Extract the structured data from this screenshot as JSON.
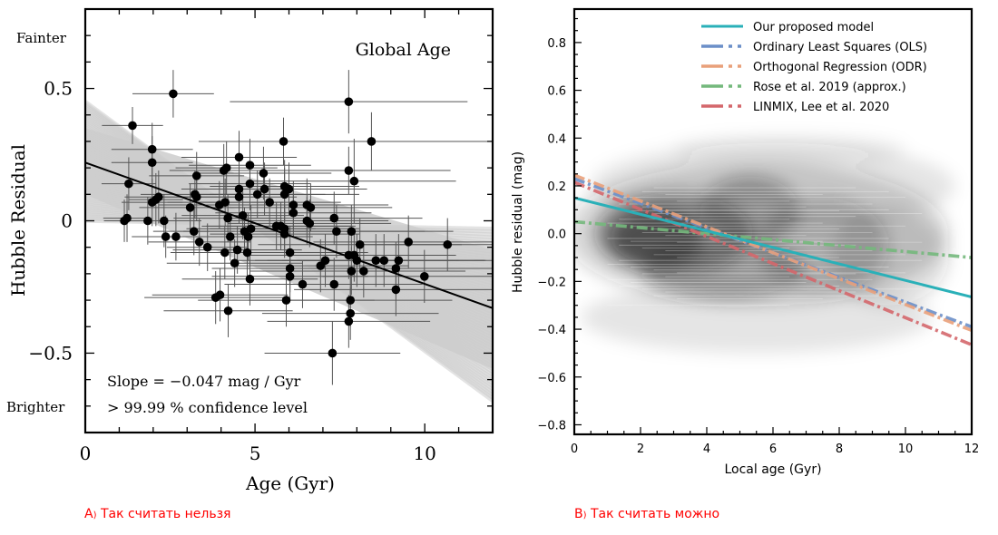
{
  "captions": {
    "a_letter": "A",
    "a_paren": ")",
    "a_text": "Так считать нельзя",
    "b_letter": "B",
    "b_paren": ")",
    "b_text": "Так считать можно"
  },
  "chart_data": [
    {
      "panel": "A",
      "type": "scatter",
      "title": "Global Age",
      "xlabel": "Age (Gyr)",
      "ylabel": "Hubble Residual",
      "xlim": [
        0,
        12
      ],
      "ylim": [
        -0.8,
        0.8
      ],
      "xticks": [
        0,
        5,
        10
      ],
      "xtick_labels": [
        "0",
        "5",
        "10"
      ],
      "yticks": [
        0.5,
        0,
        -0.5
      ],
      "ytick_labels": [
        "0.5",
        "0",
        "−0.5"
      ],
      "side_labels": {
        "top": "Fainter",
        "bottom": "Brighter"
      },
      "annotations": [
        "Slope = −0.047 mag / Gyr",
        "> 99.99 % confidence level"
      ],
      "fit_line": {
        "x": [
          0,
          12
        ],
        "y": [
          0.22,
          -0.33
        ],
        "slope": -0.047,
        "color": "#000000"
      },
      "fit_band": {
        "color": "#cccccc",
        "upper_at_x0": 0.45,
        "lower_at_x0": 0.0,
        "upper_at_x12": -0.03,
        "lower_at_x12": -0.68
      },
      "points": [
        {
          "x": 1.15,
          "y": 0.0,
          "xerr": 0.6,
          "yerr": 0.08
        },
        {
          "x": 1.23,
          "y": 0.01,
          "xerr": 0.7,
          "yerr": 0.09
        },
        {
          "x": 1.28,
          "y": 0.14,
          "xerr": 0.8,
          "yerr": 0.1
        },
        {
          "x": 1.39,
          "y": 0.36,
          "xerr": 0.9,
          "yerr": 0.07
        },
        {
          "x": 1.84,
          "y": 0.0,
          "xerr": 0.7,
          "yerr": 0.09
        },
        {
          "x": 1.97,
          "y": 0.07,
          "xerr": 0.9,
          "yerr": 0.09
        },
        {
          "x": 1.97,
          "y": 0.22,
          "xerr": 1.2,
          "yerr": 0.1
        },
        {
          "x": 1.97,
          "y": 0.27,
          "xerr": 1.2,
          "yerr": 0.1
        },
        {
          "x": 2.08,
          "y": 0.08,
          "xerr": 0.8,
          "yerr": 0.1
        },
        {
          "x": 2.16,
          "y": 0.09,
          "xerr": 1.0,
          "yerr": 0.1
        },
        {
          "x": 2.32,
          "y": 0.0,
          "xerr": 1.1,
          "yerr": 0.1
        },
        {
          "x": 2.37,
          "y": -0.06,
          "xerr": 1.0,
          "yerr": 0.08
        },
        {
          "x": 2.59,
          "y": 0.48,
          "xerr": 1.2,
          "yerr": 0.09
        },
        {
          "x": 2.67,
          "y": -0.06,
          "xerr": 1.1,
          "yerr": 0.09
        },
        {
          "x": 3.09,
          "y": 0.05,
          "xerr": 1.5,
          "yerr": 0.09
        },
        {
          "x": 3.23,
          "y": 0.1,
          "xerr": 1.6,
          "yerr": 0.09
        },
        {
          "x": 3.28,
          "y": 0.09,
          "xerr": 1.2,
          "yerr": 0.09
        },
        {
          "x": 3.28,
          "y": 0.17,
          "xerr": 1.4,
          "yerr": 0.09
        },
        {
          "x": 3.2,
          "y": -0.04,
          "xerr": 1.2,
          "yerr": 0.09
        },
        {
          "x": 3.36,
          "y": -0.08,
          "xerr": 1.5,
          "yerr": 0.09
        },
        {
          "x": 3.6,
          "y": -0.1,
          "xerr": 1.2,
          "yerr": 0.09
        },
        {
          "x": 3.84,
          "y": -0.29,
          "xerr": 2.1,
          "yerr": 0.1
        },
        {
          "x": 3.97,
          "y": -0.28,
          "xerr": 2.0,
          "yerr": 0.1
        },
        {
          "x": 3.95,
          "y": 0.06,
          "xerr": 1.8,
          "yerr": 0.09
        },
        {
          "x": 4.08,
          "y": 0.19,
          "xerr": 1.6,
          "yerr": 0.1
        },
        {
          "x": 4.16,
          "y": 0.2,
          "xerr": 1.5,
          "yerr": 0.1
        },
        {
          "x": 4.12,
          "y": 0.07,
          "xerr": 1.7,
          "yerr": 0.09
        },
        {
          "x": 4.2,
          "y": 0.01,
          "xerr": 1.6,
          "yerr": 0.09
        },
        {
          "x": 4.27,
          "y": -0.06,
          "xerr": 1.8,
          "yerr": 0.09
        },
        {
          "x": 4.11,
          "y": -0.12,
          "xerr": 1.6,
          "yerr": 0.1
        },
        {
          "x": 4.21,
          "y": -0.34,
          "xerr": 1.9,
          "yerr": 0.1
        },
        {
          "x": 4.4,
          "y": -0.16,
          "xerr": 2.0,
          "yerr": 0.09
        },
        {
          "x": 4.53,
          "y": 0.24,
          "xerr": 1.7,
          "yerr": 0.1
        },
        {
          "x": 4.53,
          "y": 0.12,
          "xerr": 1.7,
          "yerr": 0.1
        },
        {
          "x": 4.53,
          "y": 0.09,
          "xerr": 1.7,
          "yerr": 0.1
        },
        {
          "x": 4.64,
          "y": 0.02,
          "xerr": 1.8,
          "yerr": 0.09
        },
        {
          "x": 4.48,
          "y": -0.11,
          "xerr": 1.9,
          "yerr": 0.09
        },
        {
          "x": 4.69,
          "y": -0.04,
          "xerr": 1.8,
          "yerr": 0.09
        },
        {
          "x": 4.77,
          "y": -0.12,
          "xerr": 2.0,
          "yerr": 0.1
        },
        {
          "x": 4.85,
          "y": 0.21,
          "xerr": 1.8,
          "yerr": 0.1
        },
        {
          "x": 4.85,
          "y": 0.14,
          "xerr": 1.8,
          "yerr": 0.1
        },
        {
          "x": 4.8,
          "y": -0.06,
          "xerr": 1.9,
          "yerr": 0.09
        },
        {
          "x": 4.88,
          "y": -0.03,
          "xerr": 1.9,
          "yerr": 0.09
        },
        {
          "x": 4.85,
          "y": -0.22,
          "xerr": 2.0,
          "yerr": 0.1
        },
        {
          "x": 5.07,
          "y": 0.1,
          "xerr": 2.0,
          "yerr": 0.09
        },
        {
          "x": 5.25,
          "y": 0.18,
          "xerr": 2.0,
          "yerr": 0.1
        },
        {
          "x": 5.28,
          "y": 0.12,
          "xerr": 2.0,
          "yerr": 0.1
        },
        {
          "x": 5.43,
          "y": 0.07,
          "xerr": 2.1,
          "yerr": 0.09
        },
        {
          "x": 5.63,
          "y": -0.02,
          "xerr": 2.2,
          "yerr": 0.09
        },
        {
          "x": 5.76,
          "y": -0.02,
          "xerr": 2.2,
          "yerr": 0.09
        },
        {
          "x": 5.84,
          "y": 0.3,
          "xerr": 2.5,
          "yerr": 0.09
        },
        {
          "x": 5.87,
          "y": 0.13,
          "xerr": 2.2,
          "yerr": 0.1
        },
        {
          "x": 5.87,
          "y": 0.1,
          "xerr": 2.2,
          "yerr": 0.1
        },
        {
          "x": 5.87,
          "y": -0.03,
          "xerr": 2.2,
          "yerr": 0.09
        },
        {
          "x": 5.87,
          "y": -0.05,
          "xerr": 2.2,
          "yerr": 0.09
        },
        {
          "x": 5.92,
          "y": -0.3,
          "xerr": 2.6,
          "yerr": 0.1
        },
        {
          "x": 6.0,
          "y": 0.12,
          "xerr": 2.3,
          "yerr": 0.1
        },
        {
          "x": 6.03,
          "y": -0.12,
          "xerr": 2.3,
          "yerr": 0.1
        },
        {
          "x": 6.03,
          "y": -0.18,
          "xerr": 2.3,
          "yerr": 0.09
        },
        {
          "x": 6.03,
          "y": -0.21,
          "xerr": 2.3,
          "yerr": 0.09
        },
        {
          "x": 6.13,
          "y": 0.06,
          "xerr": 2.3,
          "yerr": 0.09
        },
        {
          "x": 6.13,
          "y": 0.03,
          "xerr": 2.3,
          "yerr": 0.09
        },
        {
          "x": 6.4,
          "y": -0.24,
          "xerr": 2.3,
          "yerr": 0.09
        },
        {
          "x": 6.53,
          "y": 0.06,
          "xerr": 2.4,
          "yerr": 0.1
        },
        {
          "x": 6.53,
          "y": 0.0,
          "xerr": 2.4,
          "yerr": 0.09
        },
        {
          "x": 6.61,
          "y": -0.01,
          "xerr": 2.4,
          "yerr": 0.09
        },
        {
          "x": 6.64,
          "y": 0.05,
          "xerr": 2.4,
          "yerr": 0.09
        },
        {
          "x": 6.93,
          "y": -0.17,
          "xerr": 2.6,
          "yerr": 0.1
        },
        {
          "x": 7.07,
          "y": -0.15,
          "xerr": 2.6,
          "yerr": 0.1
        },
        {
          "x": 7.28,
          "y": -0.5,
          "xerr": 2.0,
          "yerr": 0.12
        },
        {
          "x": 7.33,
          "y": 0.01,
          "xerr": 2.6,
          "yerr": 0.1
        },
        {
          "x": 7.4,
          "y": -0.04,
          "xerr": 2.6,
          "yerr": 0.1
        },
        {
          "x": 7.33,
          "y": -0.24,
          "xerr": 2.6,
          "yerr": 0.1
        },
        {
          "x": 7.76,
          "y": 0.45,
          "xerr": 3.5,
          "yerr": 0.12
        },
        {
          "x": 7.76,
          "y": 0.19,
          "xerr": 3.0,
          "yerr": 0.09
        },
        {
          "x": 7.76,
          "y": -0.13,
          "xerr": 3.0,
          "yerr": 0.09
        },
        {
          "x": 7.76,
          "y": -0.38,
          "xerr": 2.4,
          "yerr": 0.1
        },
        {
          "x": 7.81,
          "y": -0.35,
          "xerr": 2.6,
          "yerr": 0.1
        },
        {
          "x": 7.81,
          "y": -0.3,
          "xerr": 3.0,
          "yerr": 0.1
        },
        {
          "x": 7.84,
          "y": -0.19,
          "xerr": 3.0,
          "yerr": 0.09
        },
        {
          "x": 7.84,
          "y": -0.04,
          "xerr": 3.0,
          "yerr": 0.1
        },
        {
          "x": 7.92,
          "y": 0.15,
          "xerr": 3.0,
          "yerr": 0.16
        },
        {
          "x": 7.92,
          "y": -0.13,
          "xerr": 3.0,
          "yerr": 0.1
        },
        {
          "x": 8.0,
          "y": -0.15,
          "xerr": 3.0,
          "yerr": 0.1
        },
        {
          "x": 8.09,
          "y": -0.09,
          "xerr": 3.0,
          "yerr": 0.1
        },
        {
          "x": 8.2,
          "y": -0.19,
          "xerr": 3.0,
          "yerr": 0.1
        },
        {
          "x": 8.43,
          "y": 0.3,
          "xerr": 3.6,
          "yerr": 0.11
        },
        {
          "x": 8.56,
          "y": -0.15,
          "xerr": 3.2,
          "yerr": 0.1
        },
        {
          "x": 8.8,
          "y": -0.15,
          "xerr": 3.0,
          "yerr": 0.1
        },
        {
          "x": 9.15,
          "y": -0.18,
          "xerr": 3.0,
          "yerr": 0.1
        },
        {
          "x": 9.15,
          "y": -0.26,
          "xerr": 3.0,
          "yerr": 0.1
        },
        {
          "x": 9.23,
          "y": -0.15,
          "xerr": 3.0,
          "yerr": 0.1
        },
        {
          "x": 9.52,
          "y": -0.08,
          "xerr": 2.8,
          "yerr": 0.1
        },
        {
          "x": 9.99,
          "y": -0.21,
          "xerr": 3.0,
          "yerr": 0.1
        },
        {
          "x": 10.67,
          "y": -0.09,
          "xerr": 2.5,
          "yerr": 0.1
        }
      ]
    },
    {
      "panel": "B",
      "type": "line",
      "title": "",
      "xlabel": "Local age (Gyr)",
      "ylabel": "Hubble residual (mag)",
      "xlim": [
        0,
        12
      ],
      "ylim": [
        -0.84,
        0.94
      ],
      "xticks": [
        0,
        2,
        4,
        6,
        8,
        10,
        12
      ],
      "xtick_labels": [
        "0",
        "2",
        "4",
        "6",
        "8",
        "10",
        "12"
      ],
      "yticks": [
        0.8,
        0.6,
        0.4,
        0.2,
        0.0,
        -0.2,
        -0.4,
        -0.6,
        -0.8
      ],
      "ytick_labels": [
        "0.8",
        "0.6",
        "0.4",
        "0.2",
        "0.0",
        "−0.2",
        "−0.4",
        "−0.6",
        "−0.8"
      ],
      "legend_position": "top-right",
      "background": "grayscale posterior density of local-age samples, densest near age 1.5–4 Gyr, residual −0.15 to 0.15",
      "series": [
        {
          "name": "Our proposed model",
          "style": "solid",
          "color": "#2ab0b8",
          "x": [
            0,
            12
          ],
          "y": [
            0.15,
            -0.265
          ]
        },
        {
          "name": "Ordinary Least Squares (OLS)",
          "style": "dashdot",
          "color": "#6b8fc8",
          "x": [
            0,
            12
          ],
          "y": [
            0.23,
            -0.39
          ]
        },
        {
          "name": "Orthogonal Regression (ODR)",
          "style": "dashdot",
          "color": "#e9a07a",
          "x": [
            0,
            12
          ],
          "y": [
            0.245,
            -0.405
          ]
        },
        {
          "name": "Rose et al. 2019 (approx.)",
          "style": "dashdot",
          "color": "#74b87c",
          "x": [
            0,
            12
          ],
          "y": [
            0.05,
            -0.1
          ]
        },
        {
          "name": "LINMIX, Lee et al. 2020",
          "style": "dashdot",
          "color": "#d4676b",
          "x": [
            0,
            12
          ],
          "y": [
            0.215,
            -0.465
          ]
        }
      ]
    }
  ]
}
